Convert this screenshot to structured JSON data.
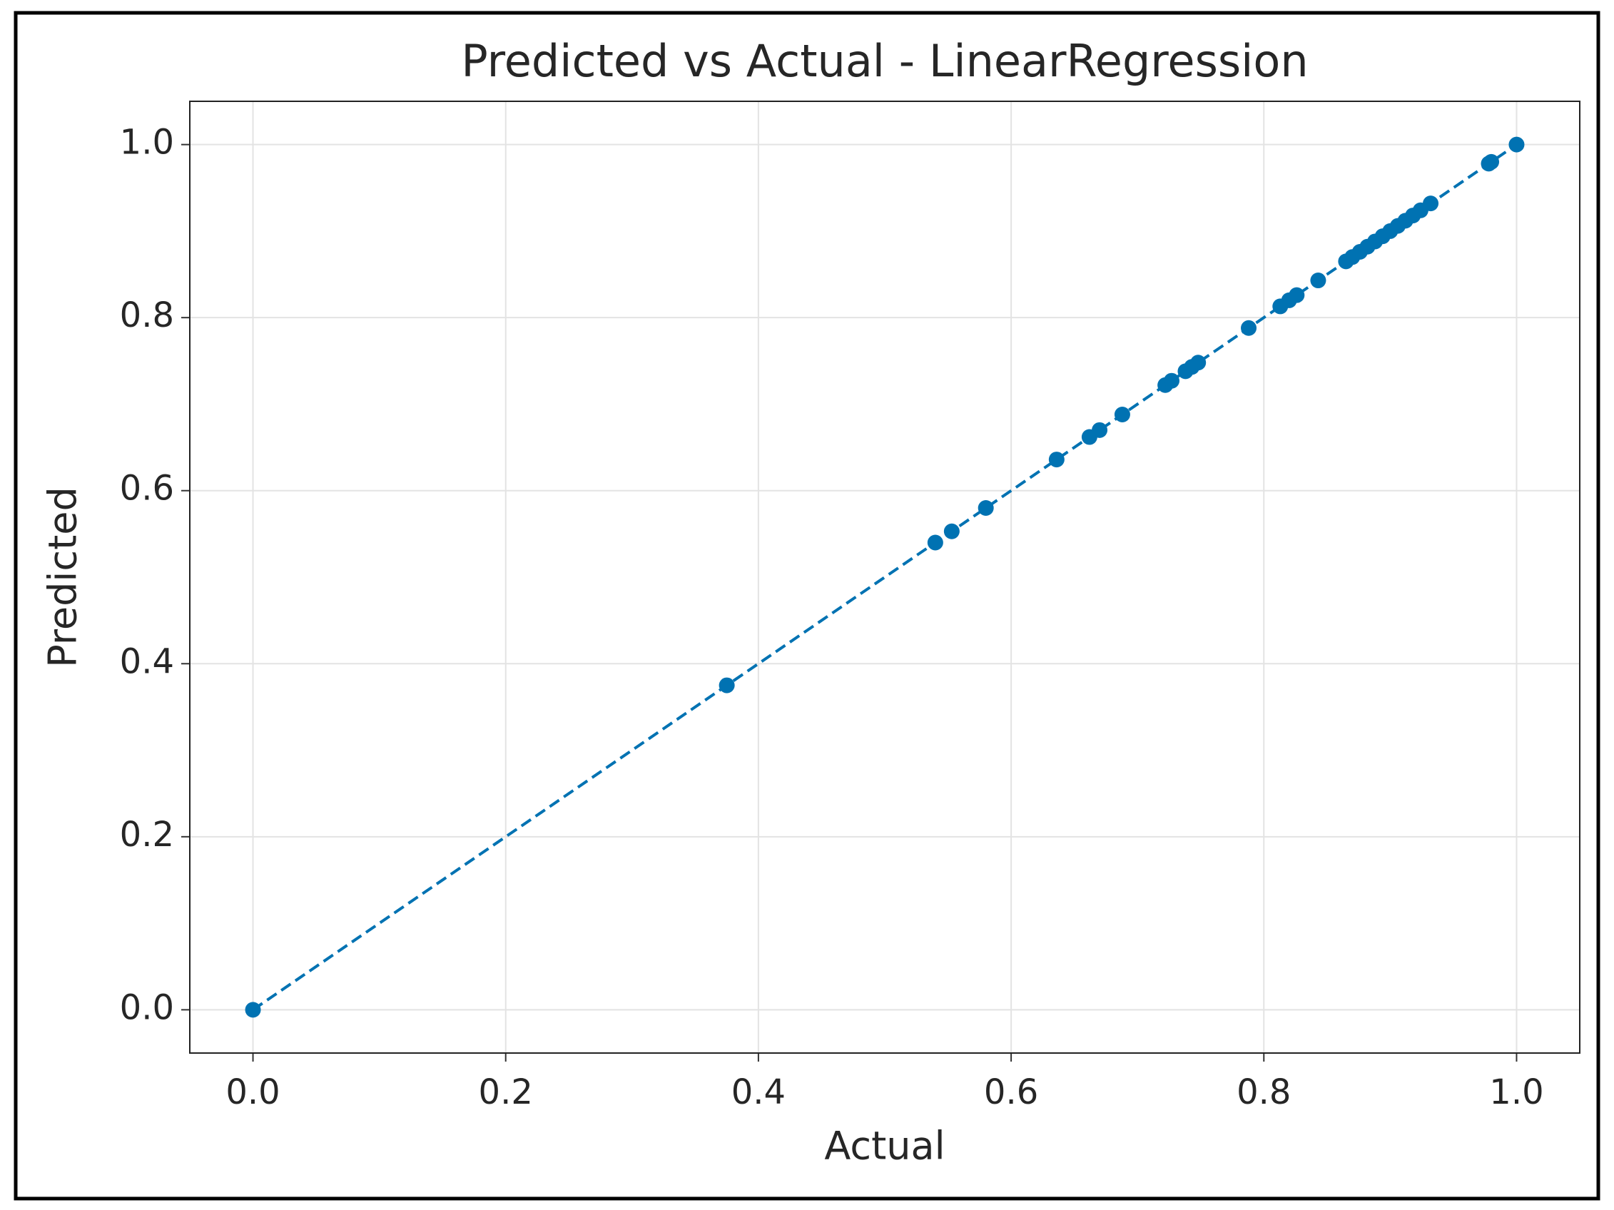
{
  "chart_data": {
    "type": "scatter",
    "title": "Predicted vs Actual - LinearRegression",
    "x_label": "Actual",
    "y_label": "Predicted",
    "x": [
      0.0,
      0.375,
      0.54,
      0.553,
      0.58,
      0.636,
      0.662,
      0.67,
      0.688,
      0.722,
      0.727,
      0.738,
      0.743,
      0.748,
      0.788,
      0.813,
      0.82,
      0.826,
      0.843,
      0.865,
      0.87,
      0.876,
      0.882,
      0.888,
      0.894,
      0.9,
      0.906,
      0.912,
      0.918,
      0.924,
      0.932,
      0.978,
      0.98,
      1.0
    ],
    "series": [
      {
        "color": "#0072b2",
        "values": [
          0.0,
          0.375,
          0.54,
          0.553,
          0.58,
          0.636,
          0.662,
          0.67,
          0.688,
          0.722,
          0.727,
          0.738,
          0.743,
          0.748,
          0.788,
          0.813,
          0.82,
          0.826,
          0.843,
          0.865,
          0.87,
          0.876,
          0.882,
          0.888,
          0.894,
          0.9,
          0.906,
          0.912,
          0.918,
          0.924,
          0.932,
          0.978,
          0.98,
          1.0
        ]
      }
    ],
    "reference_line": {
      "x": [
        0,
        1
      ],
      "y": [
        0,
        1
      ],
      "color": "#0072b2",
      "style": "dashed"
    },
    "xlim": [
      -0.05,
      1.05
    ],
    "ylim": [
      -0.05,
      1.05
    ],
    "xticks": [
      {
        "value": 0,
        "label": "0.0"
      },
      0.2,
      0.4,
      0.6,
      0.8,
      {
        "value": 1,
        "label": "1.0"
      }
    ],
    "yticks": [
      {
        "value": 0,
        "label": "0.0"
      },
      0.2,
      0.4,
      0.6,
      0.8,
      {
        "value": 1,
        "label": "1.0"
      }
    ],
    "grid": true
  }
}
